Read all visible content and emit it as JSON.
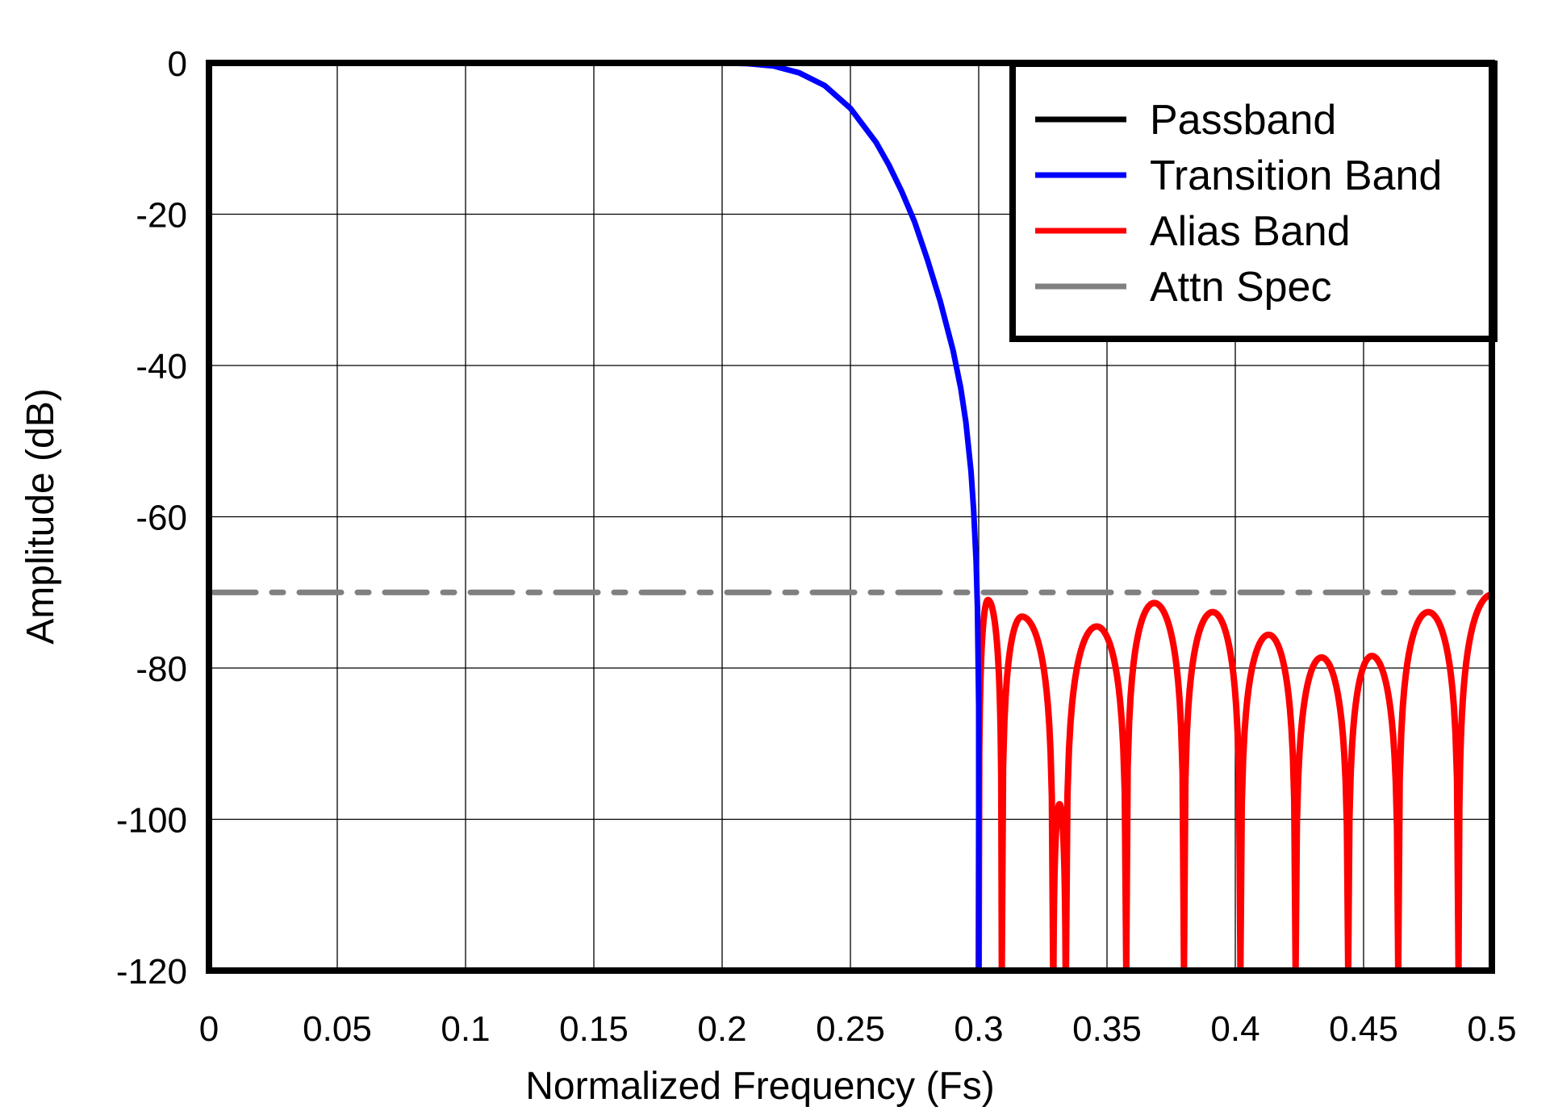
{
  "chart_data": {
    "type": "line",
    "title": "",
    "xlabel": "Normalized Frequency (Fs)",
    "ylabel": "Amplitude (dB)",
    "xlim": [
      0,
      0.5
    ],
    "ylim": [
      -120,
      0
    ],
    "grid": true,
    "legend_position": "upper right",
    "x_ticks": [
      0,
      0.05,
      0.1,
      0.15,
      0.2,
      0.25,
      0.3,
      0.35,
      0.4,
      0.45,
      0.5
    ],
    "x_tick_labels": [
      "0",
      "0.05",
      "0.1",
      "0.15",
      "0.2",
      "0.25",
      "0.3",
      "0.35",
      "0.4",
      "0.45",
      "0.5"
    ],
    "y_ticks": [
      0,
      -20,
      -40,
      -60,
      -80,
      -100,
      -120
    ],
    "y_tick_labels": [
      "0",
      "-20",
      "-40",
      "-60",
      "-80",
      "-100",
      "-120"
    ],
    "series": [
      {
        "name": "Passband",
        "color": "#000000",
        "style": "solid",
        "x": [],
        "y": []
      },
      {
        "name": "Transition Band",
        "color": "#0000ff",
        "style": "solid",
        "x": [
          0.2,
          0.21,
          0.22,
          0.23,
          0.24,
          0.25,
          0.26,
          0.265,
          0.27,
          0.275,
          0.28,
          0.285,
          0.29,
          0.293,
          0.295,
          0.297,
          0.298,
          0.299,
          0.2995,
          0.3
        ],
        "y": [
          0.0,
          -0.1,
          -0.4,
          -1.3,
          -3.0,
          -6.0,
          -10.5,
          -13.5,
          -17.0,
          -21.0,
          -26.0,
          -31.5,
          -38.0,
          -43.0,
          -47.5,
          -54.0,
          -59.0,
          -66.0,
          -72.0,
          -85.0
        ]
      },
      {
        "name": "Alias Band",
        "color": "#ff0000",
        "style": "solid",
        "peaks": [
          {
            "f": 0.3036,
            "db": -71.0
          },
          {
            "f": 0.3168,
            "db": -73.2
          },
          {
            "f": 0.3315,
            "db": -98.0
          },
          {
            "f": 0.346,
            "db": -74.5
          },
          {
            "f": 0.3684,
            "db": -71.4
          },
          {
            "f": 0.3912,
            "db": -72.6
          },
          {
            "f": 0.413,
            "db": -75.6
          },
          {
            "f": 0.4336,
            "db": -78.6
          },
          {
            "f": 0.4532,
            "db": -78.4
          },
          {
            "f": 0.4752,
            "db": -72.6
          },
          {
            "f": 0.5,
            "db": -70.3
          }
        ],
        "nulls": [
          0.3,
          0.309,
          0.329,
          0.334,
          0.3575,
          0.38,
          0.402,
          0.4235,
          0.444,
          0.4635,
          0.487
        ]
      },
      {
        "name": "Attn Spec",
        "color": "#808080",
        "style": "dashed",
        "x": [
          0,
          0.5
        ],
        "y": [
          -70,
          -70
        ]
      }
    ]
  },
  "legend": {
    "items": [
      {
        "label": "Passband",
        "color": "#000000"
      },
      {
        "label": "Transition Band",
        "color": "#0000ff"
      },
      {
        "label": "Alias Band",
        "color": "#ff0000"
      },
      {
        "label": "Attn Spec",
        "color": "#808080"
      }
    ]
  },
  "axes": {
    "x_title": "Normalized Frequency (Fs)",
    "y_title": "Amplitude (dB)"
  }
}
